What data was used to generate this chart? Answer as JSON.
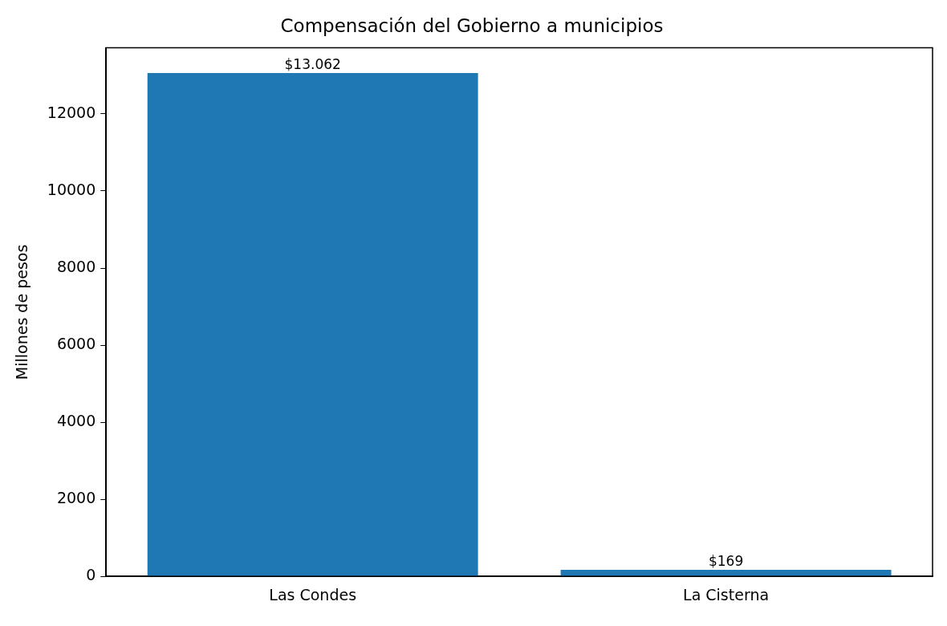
{
  "chart_data": {
    "type": "bar",
    "title": "Compensación del Gobierno a municipios",
    "ylabel": "Millones de pesos",
    "categories": [
      "Las Condes",
      "La Cisterna"
    ],
    "values": [
      13062,
      169
    ],
    "color": "#1f77b4",
    "value_labels": [
      "$13.062",
      "$169"
    ],
    "ylim": [
      0,
      13715
    ],
    "yticks": [
      0,
      2000,
      4000,
      6000,
      8000,
      10000,
      12000
    ],
    "grid": false,
    "legend": false
  }
}
